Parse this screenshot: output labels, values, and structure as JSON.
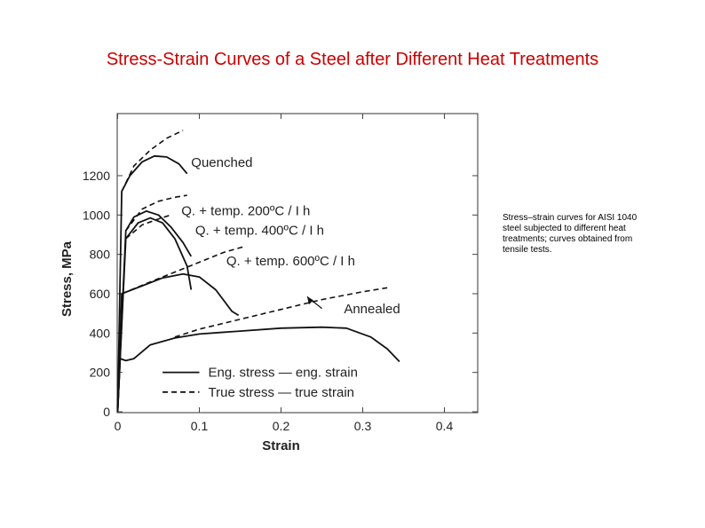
{
  "slide": {
    "title": "Stress-Strain Curves of a Steel after Different Heat Treatments",
    "caption": "Stress–strain curves for AISI 1040 steel subjected to different heat treatments; curves obtained from tensile tests."
  },
  "chart_data": {
    "type": "line",
    "xlabel": "Strain",
    "ylabel": "Stress, MPa",
    "xlim": [
      0,
      0.42
    ],
    "ylim": [
      0,
      1300
    ],
    "x_ticks": [
      0,
      0.1,
      0.2,
      0.3,
      0.4
    ],
    "x_tick_labels": [
      "0",
      "0.1",
      "0.2",
      "0.3",
      "0.4"
    ],
    "y_ticks": [
      0,
      200,
      400,
      600,
      800,
      1000,
      1200
    ],
    "y_tick_labels": [
      "0",
      "200",
      "400",
      "600",
      "800",
      "1000",
      "1200"
    ],
    "grid": false,
    "legend": {
      "placement": "bottom",
      "entries": [
        {
          "label": "Eng. stress — eng. strain",
          "style": "solid"
        },
        {
          "label": "True stress — true strain",
          "style": "dashed"
        }
      ]
    },
    "series": [
      {
        "name": "Quenched",
        "eng": [
          [
            0,
            0
          ],
          [
            0.005,
            1120
          ],
          [
            0.015,
            1200
          ],
          [
            0.03,
            1270
          ],
          [
            0.045,
            1300
          ],
          [
            0.06,
            1295
          ],
          [
            0.075,
            1260
          ],
          [
            0.085,
            1210
          ]
        ],
        "true": [
          [
            0.005,
            1120
          ],
          [
            0.02,
            1250
          ],
          [
            0.04,
            1330
          ],
          [
            0.06,
            1390
          ],
          [
            0.08,
            1430
          ]
        ]
      },
      {
        "name": "Q. + temp. 200°C / I h",
        "eng": [
          [
            0,
            0
          ],
          [
            0.01,
            920
          ],
          [
            0.02,
            990
          ],
          [
            0.035,
            1020
          ],
          [
            0.05,
            1000
          ],
          [
            0.065,
            940
          ],
          [
            0.08,
            860
          ],
          [
            0.09,
            790
          ]
        ],
        "true": [
          [
            0.01,
            920
          ],
          [
            0.03,
            1030
          ],
          [
            0.05,
            1070
          ],
          [
            0.07,
            1090
          ],
          [
            0.085,
            1100
          ]
        ]
      },
      {
        "name": "Q. + temp. 400°C / I h",
        "eng": [
          [
            0,
            0
          ],
          [
            0.01,
            880
          ],
          [
            0.025,
            960
          ],
          [
            0.04,
            985
          ],
          [
            0.055,
            960
          ],
          [
            0.07,
            880
          ],
          [
            0.085,
            740
          ],
          [
            0.09,
            620
          ]
        ],
        "true": [
          [
            0.01,
            880
          ],
          [
            0.03,
            950
          ],
          [
            0.05,
            980
          ],
          [
            0.065,
            1000
          ]
        ]
      },
      {
        "name": "Q. + temp. 600°C / I h",
        "eng": [
          [
            0,
            0
          ],
          [
            0.005,
            600
          ],
          [
            0.03,
            640
          ],
          [
            0.055,
            680
          ],
          [
            0.08,
            700
          ],
          [
            0.1,
            685
          ],
          [
            0.12,
            620
          ],
          [
            0.14,
            510
          ],
          [
            0.148,
            490
          ]
        ],
        "true": [
          [
            0.005,
            600
          ],
          [
            0.04,
            660
          ],
          [
            0.07,
            710
          ],
          [
            0.1,
            760
          ],
          [
            0.13,
            810
          ],
          [
            0.155,
            840
          ]
        ]
      },
      {
        "name": "Annealed",
        "eng": [
          [
            0,
            0
          ],
          [
            0.003,
            270
          ],
          [
            0.01,
            260
          ],
          [
            0.02,
            270
          ],
          [
            0.04,
            340
          ],
          [
            0.07,
            375
          ],
          [
            0.1,
            395
          ],
          [
            0.15,
            410
          ],
          [
            0.2,
            425
          ],
          [
            0.25,
            430
          ],
          [
            0.28,
            425
          ],
          [
            0.31,
            380
          ],
          [
            0.33,
            320
          ],
          [
            0.345,
            255
          ]
        ],
        "true": [
          [
            0.07,
            380
          ],
          [
            0.1,
            420
          ],
          [
            0.15,
            470
          ],
          [
            0.2,
            520
          ],
          [
            0.25,
            570
          ],
          [
            0.3,
            610
          ],
          [
            0.33,
            630
          ]
        ]
      }
    ],
    "annotations": [
      {
        "text": "Quenched",
        "series": "Quenched"
      },
      {
        "text": "Q. + temp. 200ºC / I h",
        "series": "Q. + temp. 200°C / I h"
      },
      {
        "text": "Q. + temp. 400ºC / I h",
        "series": "Q. + temp. 400°C / I h"
      },
      {
        "text": "Q. + temp. 600ºC / I h",
        "series": "Q. + temp. 600°C / I h"
      },
      {
        "text": "Annealed",
        "series": "Annealed"
      }
    ]
  }
}
